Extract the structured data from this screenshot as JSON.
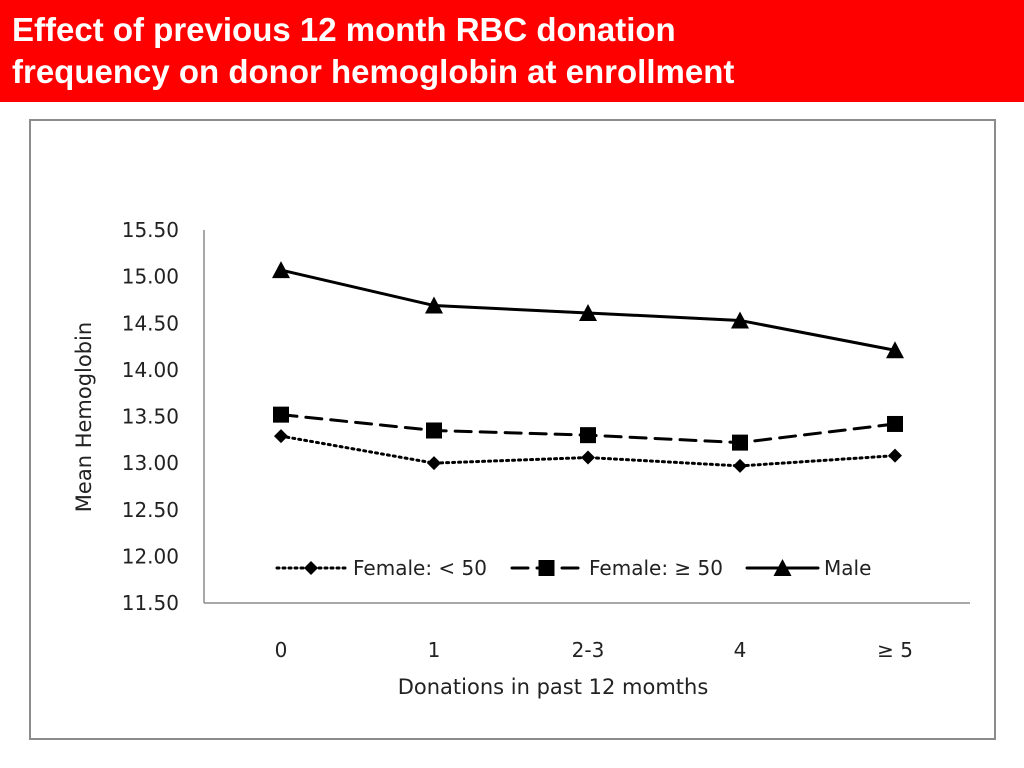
{
  "slide": {
    "title_line1": "Effect of previous 12 month RBC donation",
    "title_line2": "frequency on donor hemoglobin at enrollment",
    "title_bg_color": "#ff0000"
  },
  "chart_data": {
    "type": "line",
    "categories": [
      "0",
      "1",
      "2-3",
      "4",
      "≥ 5"
    ],
    "xlabel": "Donations in past 12 momths",
    "ylabel": "Mean  Hemoglobin",
    "ylim": [
      11.5,
      15.5
    ],
    "yticks": [
      "15.50",
      "15.00",
      "14.50",
      "14.00",
      "13.50",
      "13.00",
      "12.50",
      "12.00",
      "11.50"
    ],
    "grid": false,
    "legend_position": "bottom-inside",
    "series": [
      {
        "name": "Female: < 50",
        "values": [
          13.29,
          13.0,
          13.06,
          12.97,
          13.08
        ],
        "line_style": "dotted",
        "marker": "diamond",
        "color": "#000000"
      },
      {
        "name": "Female: ≥ 50",
        "values": [
          13.52,
          13.35,
          13.3,
          13.22,
          13.42
        ],
        "line_style": "dashed",
        "marker": "square",
        "color": "#000000"
      },
      {
        "name": "Male",
        "values": [
          15.07,
          14.69,
          14.61,
          14.53,
          14.21
        ],
        "line_style": "solid",
        "marker": "triangle",
        "color": "#000000"
      }
    ]
  }
}
